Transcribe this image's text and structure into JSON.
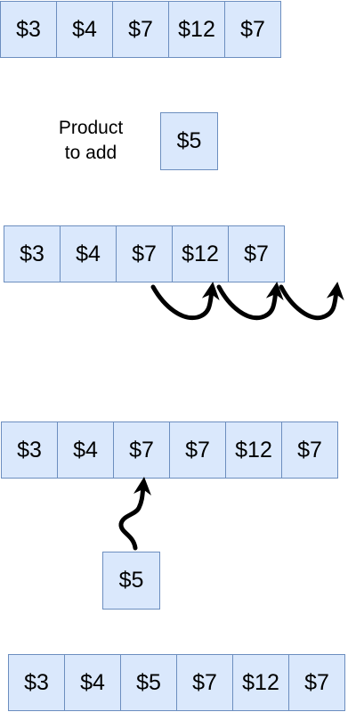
{
  "rows": [
    {
      "name": "original-array",
      "cells": [
        "$3",
        "$4",
        "$7",
        "$12",
        "$7"
      ]
    },
    {
      "name": "shifting-array",
      "cells": [
        "$3",
        "$4",
        "$7",
        "$12",
        "$7"
      ]
    },
    {
      "name": "shifted-array",
      "cells": [
        "$3",
        "$4",
        "$7",
        "$7",
        "$12",
        "$7"
      ]
    },
    {
      "name": "final-array",
      "cells": [
        "$3",
        "$4",
        "$5",
        "$7",
        "$12",
        "$7"
      ]
    }
  ],
  "label": {
    "line1": "Product",
    "line2": "to add"
  },
  "product_box": "$5",
  "insert_box": "$5"
}
